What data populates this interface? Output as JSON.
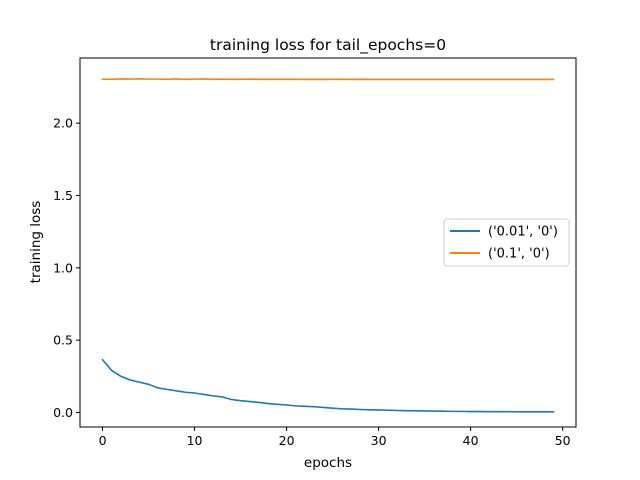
{
  "chart_data": {
    "type": "line",
    "title": "training loss for tail_epochs=0",
    "xlabel": "epochs",
    "ylabel": "training loss",
    "xlim": [
      -2.45,
      51.45
    ],
    "ylim": [
      -0.1,
      2.45
    ],
    "xticks": [
      0,
      10,
      20,
      30,
      40,
      50
    ],
    "yticks": [
      0.0,
      0.5,
      1.0,
      1.5,
      2.0
    ],
    "xtick_labels": [
      "0",
      "10",
      "20",
      "30",
      "40",
      "50"
    ],
    "ytick_labels": [
      "0.0",
      "0.5",
      "1.0",
      "1.5",
      "2.0"
    ],
    "grid": false,
    "legend_position": "center-right",
    "series": [
      {
        "name": "('0.01', '0')",
        "color": "#1f77b4",
        "x": [
          0,
          1,
          2,
          3,
          4,
          5,
          6,
          7,
          8,
          9,
          10,
          11,
          12,
          13,
          14,
          15,
          16,
          17,
          18,
          19,
          20,
          21,
          22,
          23,
          24,
          25,
          26,
          27,
          28,
          29,
          30,
          31,
          32,
          33,
          34,
          35,
          36,
          37,
          38,
          39,
          40,
          41,
          42,
          43,
          44,
          45,
          46,
          47,
          48,
          49
        ],
        "y": [
          0.365,
          0.29,
          0.25,
          0.225,
          0.21,
          0.195,
          0.17,
          0.16,
          0.15,
          0.14,
          0.135,
          0.125,
          0.115,
          0.108,
          0.09,
          0.082,
          0.076,
          0.07,
          0.062,
          0.057,
          0.052,
          0.046,
          0.043,
          0.04,
          0.035,
          0.03,
          0.026,
          0.024,
          0.021,
          0.019,
          0.018,
          0.016,
          0.014,
          0.013,
          0.012,
          0.011,
          0.01,
          0.009,
          0.008,
          0.008,
          0.007,
          0.007,
          0.006,
          0.006,
          0.006,
          0.005,
          0.005,
          0.005,
          0.005,
          0.005
        ]
      },
      {
        "name": "('0.1', '0')",
        "color": "#ff7f0e",
        "x": [
          0,
          1,
          2,
          3,
          4,
          5,
          6,
          7,
          8,
          9,
          10,
          11,
          12,
          13,
          14,
          15,
          16,
          17,
          18,
          19,
          20,
          21,
          22,
          23,
          24,
          25,
          26,
          27,
          28,
          29,
          30,
          31,
          32,
          33,
          34,
          35,
          36,
          37,
          38,
          39,
          40,
          41,
          42,
          43,
          44,
          45,
          46,
          47,
          48,
          49
        ],
        "y": [
          2.304,
          2.303,
          2.305,
          2.304,
          2.306,
          2.304,
          2.304,
          2.303,
          2.305,
          2.303,
          2.304,
          2.305,
          2.303,
          2.304,
          2.303,
          2.303,
          2.304,
          2.303,
          2.303,
          2.303,
          2.303,
          2.303,
          2.302,
          2.303,
          2.302,
          2.303,
          2.303,
          2.302,
          2.303,
          2.302,
          2.302,
          2.302,
          2.302,
          2.302,
          2.302,
          2.302,
          2.302,
          2.302,
          2.302,
          2.302,
          2.302,
          2.302,
          2.302,
          2.302,
          2.302,
          2.302,
          2.302,
          2.302,
          2.302,
          2.302
        ]
      }
    ]
  }
}
